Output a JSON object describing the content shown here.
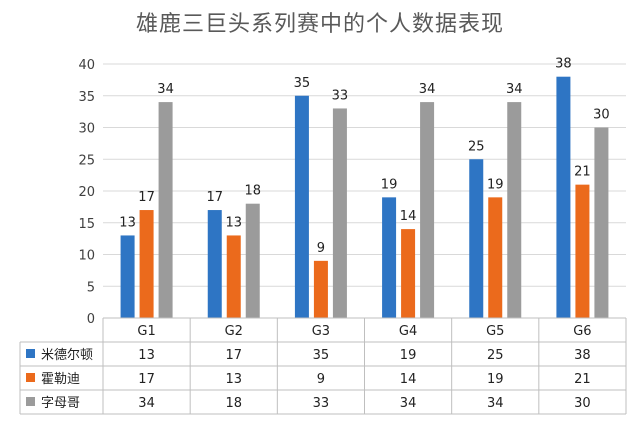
{
  "chart_data": {
    "type": "bar",
    "title": "雄鹿三巨头系列赛中的个人数据表现",
    "categories": [
      "G1",
      "G2",
      "G3",
      "G4",
      "G5",
      "G6"
    ],
    "series": [
      {
        "name": "米德尔顿",
        "color": "#2E75C4",
        "values": [
          13,
          17,
          35,
          19,
          25,
          38
        ]
      },
      {
        "name": "霍勒迪",
        "color": "#EB6A1C",
        "values": [
          17,
          13,
          9,
          14,
          19,
          21
        ]
      },
      {
        "name": "字母哥",
        "color": "#9B9B9B",
        "values": [
          34,
          18,
          33,
          34,
          34,
          30
        ]
      }
    ],
    "ylim": [
      0,
      40
    ],
    "yticks": [
      0,
      5,
      10,
      15,
      20,
      25,
      30,
      35,
      40
    ],
    "grid": true,
    "legend": "data-table",
    "data_labels": true
  }
}
